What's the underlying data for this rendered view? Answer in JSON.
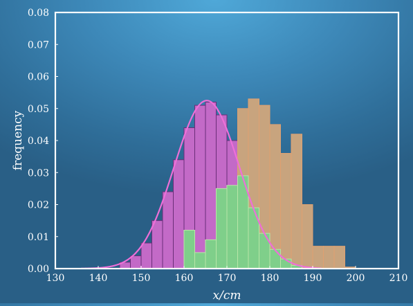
{
  "chart_data": {
    "type": "bar",
    "xlabel": "x/cm",
    "ylabel": "frequency",
    "xlim": [
      130,
      210
    ],
    "ylim": [
      0,
      0.08
    ],
    "grid": false,
    "bin_width": 2.5,
    "xticks": [
      "130",
      "140",
      "150",
      "160",
      "170",
      "180",
      "190",
      "200",
      "210"
    ],
    "yticks": [
      "0.00",
      "0.01",
      "0.02",
      "0.03",
      "0.04",
      "0.05",
      "0.06",
      "0.07",
      "0.08"
    ],
    "series": [
      {
        "color": "#c36ac7",
        "edge_color": "#6a2d78",
        "bins": [
          {
            "x0": 145.0,
            "value": 0.002
          },
          {
            "x0": 147.5,
            "value": 0.004
          },
          {
            "x0": 150.0,
            "value": 0.008
          },
          {
            "x0": 152.5,
            "value": 0.015
          },
          {
            "x0": 155.0,
            "value": 0.024
          },
          {
            "x0": 157.5,
            "value": 0.034
          },
          {
            "x0": 160.0,
            "value": 0.044
          },
          {
            "x0": 162.5,
            "value": 0.051
          },
          {
            "x0": 165.0,
            "value": 0.052
          },
          {
            "x0": 167.5,
            "value": 0.048
          },
          {
            "x0": 170.0,
            "value": 0.04
          },
          {
            "x0": 172.5,
            "value": 0.035
          }
        ]
      },
      {
        "color": "#c8a47e",
        "edge_color": "#e0a070",
        "bins": [
          {
            "x0": 172.5,
            "value": 0.05
          },
          {
            "x0": 175.0,
            "value": 0.053
          },
          {
            "x0": 177.5,
            "value": 0.051
          },
          {
            "x0": 180.0,
            "value": 0.045
          },
          {
            "x0": 182.5,
            "value": 0.036
          },
          {
            "x0": 185.0,
            "value": 0.042
          },
          {
            "x0": 187.5,
            "value": 0.02
          },
          {
            "x0": 190.0,
            "value": 0.007
          },
          {
            "x0": 192.5,
            "value": 0.007
          },
          {
            "x0": 195.0,
            "value": 0.007
          },
          {
            "x0": 197.5,
            "value": 0.0005
          }
        ]
      },
      {
        "color": "#7fcf8a",
        "edge_color": "#b9e6a8",
        "bins": [
          {
            "x0": 160.0,
            "value": 0.012
          },
          {
            "x0": 162.5,
            "value": 0.005
          },
          {
            "x0": 165.0,
            "value": 0.009
          },
          {
            "x0": 167.5,
            "value": 0.025
          },
          {
            "x0": 170.0,
            "value": 0.026
          },
          {
            "x0": 172.5,
            "value": 0.029
          },
          {
            "x0": 175.0,
            "value": 0.019
          },
          {
            "x0": 177.5,
            "value": 0.011
          },
          {
            "x0": 180.0,
            "value": 0.006
          },
          {
            "x0": 182.5,
            "value": 0.003
          },
          {
            "x0": 185.0,
            "value": 0.001
          }
        ]
      },
      {
        "type": "line",
        "color": "#ee6fd8",
        "mean": 165.3,
        "std": 7.6,
        "x_range": [
          136,
          192
        ]
      }
    ]
  }
}
